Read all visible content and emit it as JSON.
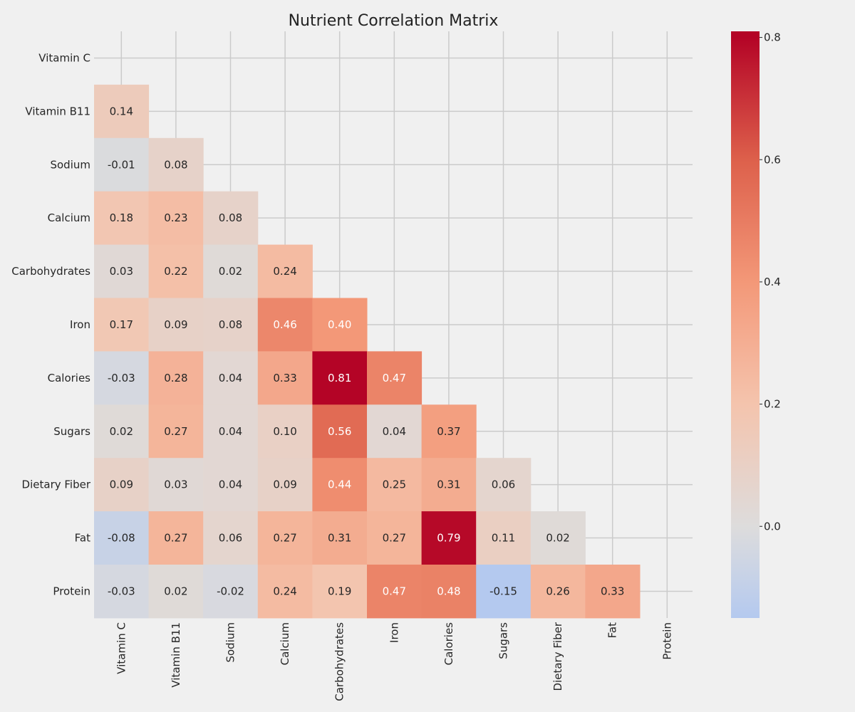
{
  "chart_data": {
    "type": "heatmap",
    "title": "Nutrient Correlation Matrix",
    "row_labels": [
      "Vitamin C",
      "Vitamin B11",
      "Sodium",
      "Calcium",
      "Carbohydrates",
      "Iron",
      "Calories",
      "Sugars",
      "Dietary Fiber",
      "Fat",
      "Protein"
    ],
    "col_labels": [
      "Vitamin C",
      "Vitamin B11",
      "Sodium",
      "Calcium",
      "Carbohydrates",
      "Iron",
      "Calories",
      "Sugars",
      "Dietary Fiber",
      "Fat",
      "Protein"
    ],
    "mask": "upper-triangle-and-diagonal",
    "values": [
      [],
      [
        0.14
      ],
      [
        -0.01,
        0.08
      ],
      [
        0.18,
        0.23,
        0.08
      ],
      [
        0.03,
        0.22,
        0.02,
        0.24
      ],
      [
        0.17,
        0.09,
        0.08,
        0.46,
        0.4
      ],
      [
        -0.03,
        0.28,
        0.04,
        0.33,
        0.81,
        0.47
      ],
      [
        0.02,
        0.27,
        0.04,
        0.1,
        0.56,
        0.04,
        0.37
      ],
      [
        0.09,
        0.03,
        0.04,
        0.09,
        0.44,
        0.25,
        0.31,
        0.06
      ],
      [
        -0.08,
        0.27,
        0.06,
        0.27,
        0.31,
        0.27,
        0.79,
        0.11,
        0.02
      ],
      [
        -0.03,
        0.02,
        -0.02,
        0.24,
        0.19,
        0.47,
        0.48,
        -0.15,
        0.26,
        0.33
      ]
    ],
    "value_format": "2dp",
    "colormap": "coolwarm",
    "color_range": [
      -0.15,
      0.81
    ],
    "colorbar": {
      "ticks": [
        "0.0",
        "0.2",
        "0.4",
        "0.6",
        "0.8"
      ]
    },
    "grid": true,
    "colors": {
      "background": "#f0f0f0",
      "grid": "#cbcbcb",
      "cold": "#b4c9ef",
      "neutral": "#dddcdc",
      "hot": "#b40426"
    }
  }
}
